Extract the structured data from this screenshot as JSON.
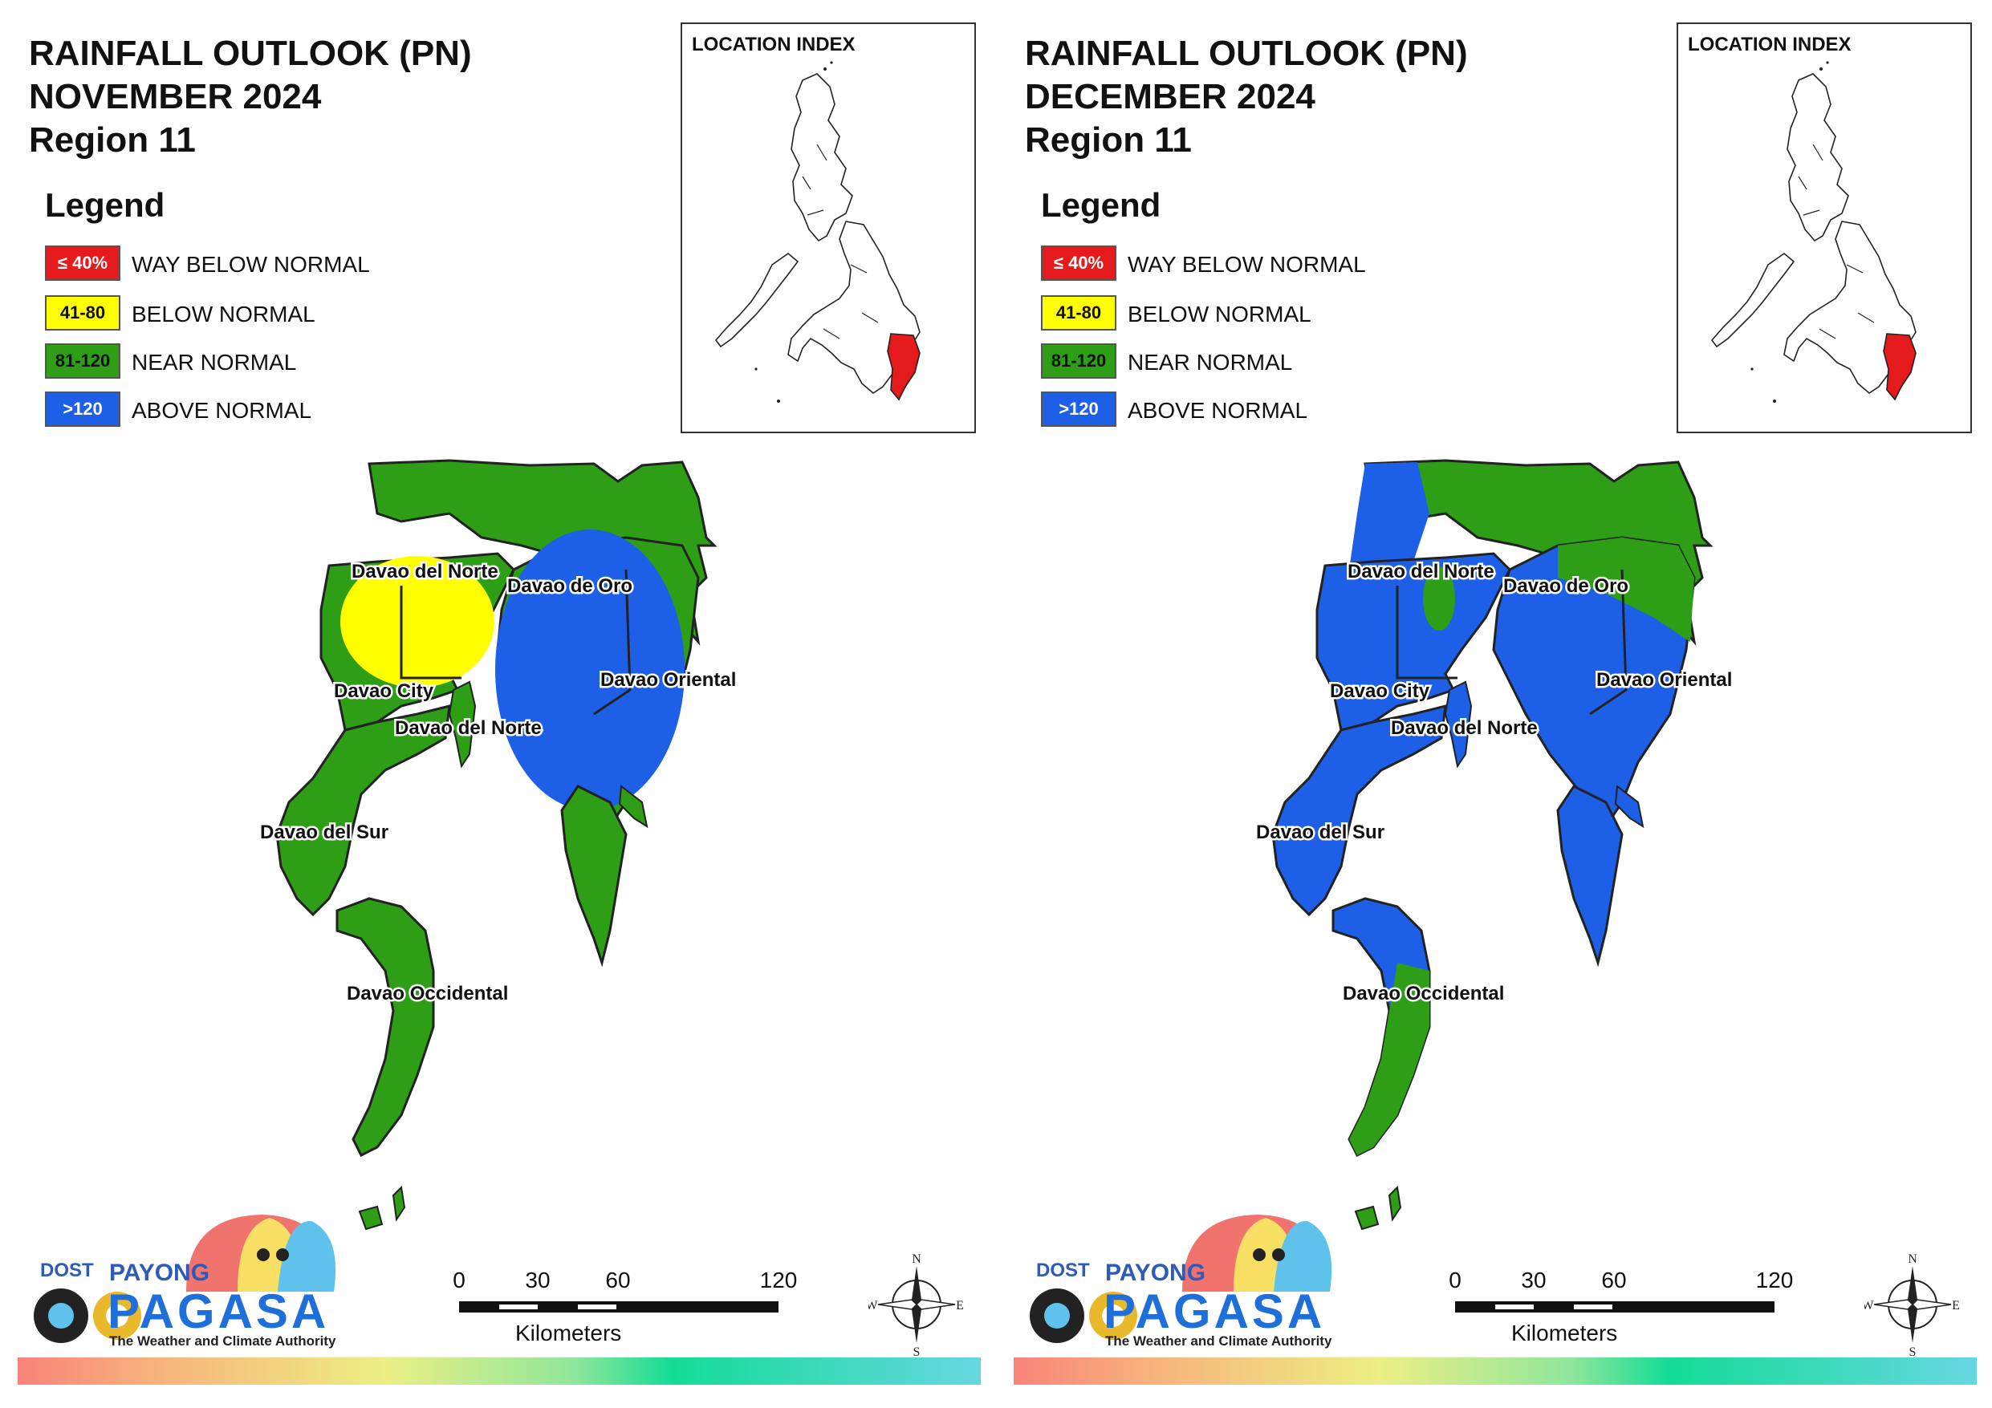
{
  "panels": [
    {
      "id": "november",
      "title": [
        "RAINFALL OUTLOOK (PN)",
        "NOVEMBER 2024",
        "Region 11"
      ],
      "fills": {
        "west": "#ffff00",
        "west_base": "#2d9e16",
        "east": "#1d5fe6",
        "east_base": "#2d9e16",
        "north": "#2d9e16",
        "south": "#2d9e16"
      }
    },
    {
      "id": "december",
      "title": [
        "RAINFALL OUTLOOK (PN)",
        "DECEMBER 2024",
        "Region 11"
      ],
      "fills": {
        "west": "#1d5fe6",
        "west_base": "#1d5fe6",
        "east": "#1d5fe6",
        "east_base": "#1d5fe6",
        "north": "#2d9e16",
        "south": "#2d9e16"
      }
    }
  ],
  "legend": {
    "heading": "Legend",
    "items": [
      {
        "range": "≤ 40%",
        "label": "WAY BELOW NORMAL",
        "color": "#e41a1c",
        "text_color": "#ffffff"
      },
      {
        "range": "41-80",
        "label": "BELOW NORMAL",
        "color": "#ffff00",
        "text_color": "#111111"
      },
      {
        "range": "81-120",
        "label": "NEAR NORMAL",
        "color": "#2d9e16",
        "text_color": "#111111"
      },
      {
        "range": ">120",
        "label": "ABOVE NORMAL",
        "color": "#1d5fe6",
        "text_color": "#ffffff"
      }
    ]
  },
  "inset": {
    "title": "LOCATION INDEX",
    "highlight_color": "#e41a1c"
  },
  "provinces": [
    "Davao del Norte",
    "Davao de Oro",
    "Davao Oriental",
    "Davao City",
    "Davao del Norte",
    "Davao del Sur",
    "Davao Occidental"
  ],
  "scale_bar": {
    "ticks": [
      "0",
      "30",
      "60",
      "120"
    ],
    "unit": "Kilometers"
  },
  "compass": {
    "n": "N",
    "s": "S",
    "e": "E",
    "w": "W"
  },
  "logo": {
    "agency": "DOST",
    "brand_top": "PAYONG",
    "brand_main": "PAGASA",
    "tagline": "The Weather and Climate Authority"
  }
}
